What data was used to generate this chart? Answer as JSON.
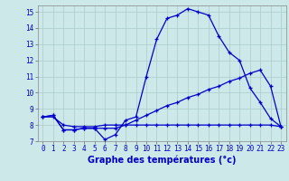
{
  "title": "Graphe des températures (°c)",
  "background_color": "#cce8e8",
  "grid_color": "#aacccc",
  "line_color": "#0000cc",
  "xlim": [
    -0.5,
    23.5
  ],
  "ylim": [
    7,
    15.4
  ],
  "xticks": [
    0,
    1,
    2,
    3,
    4,
    5,
    6,
    7,
    8,
    9,
    10,
    11,
    12,
    13,
    14,
    15,
    16,
    17,
    18,
    19,
    20,
    21,
    22,
    23
  ],
  "yticks": [
    7,
    8,
    9,
    10,
    11,
    12,
    13,
    14,
    15
  ],
  "line1_x": [
    0,
    1,
    2,
    3,
    4,
    5,
    6,
    7,
    8,
    9,
    10,
    11,
    12,
    13,
    14,
    15,
    16,
    17,
    18,
    19,
    20,
    21,
    22,
    23
  ],
  "line1_y": [
    8.5,
    8.6,
    7.7,
    7.7,
    7.8,
    7.8,
    7.1,
    7.4,
    8.3,
    8.5,
    11.0,
    13.3,
    14.6,
    14.8,
    15.2,
    15.0,
    14.8,
    13.5,
    12.5,
    12.0,
    10.3,
    9.4,
    8.4,
    7.9
  ],
  "line2_x": [
    0,
    1,
    2,
    3,
    4,
    5,
    6,
    7,
    8,
    9,
    10,
    11,
    12,
    13,
    14,
    15,
    16,
    17,
    18,
    19,
    20,
    21,
    22,
    23
  ],
  "line2_y": [
    8.5,
    8.6,
    7.7,
    7.7,
    7.8,
    7.8,
    7.8,
    7.8,
    8.0,
    8.3,
    8.6,
    8.9,
    9.2,
    9.4,
    9.7,
    9.9,
    10.2,
    10.4,
    10.7,
    10.9,
    11.2,
    11.4,
    10.4,
    7.9
  ],
  "line3_x": [
    0,
    1,
    2,
    3,
    4,
    5,
    6,
    7,
    8,
    9,
    10,
    11,
    12,
    13,
    14,
    15,
    16,
    17,
    18,
    19,
    20,
    21,
    22,
    23
  ],
  "line3_y": [
    8.5,
    8.5,
    8.0,
    7.9,
    7.9,
    7.9,
    8.0,
    8.0,
    8.0,
    8.0,
    8.0,
    8.0,
    8.0,
    8.0,
    8.0,
    8.0,
    8.0,
    8.0,
    8.0,
    8.0,
    8.0,
    8.0,
    8.0,
    7.9
  ],
  "xlabel_fontsize": 7,
  "tick_fontsize": 5.5,
  "linewidth": 0.9,
  "markersize": 3
}
